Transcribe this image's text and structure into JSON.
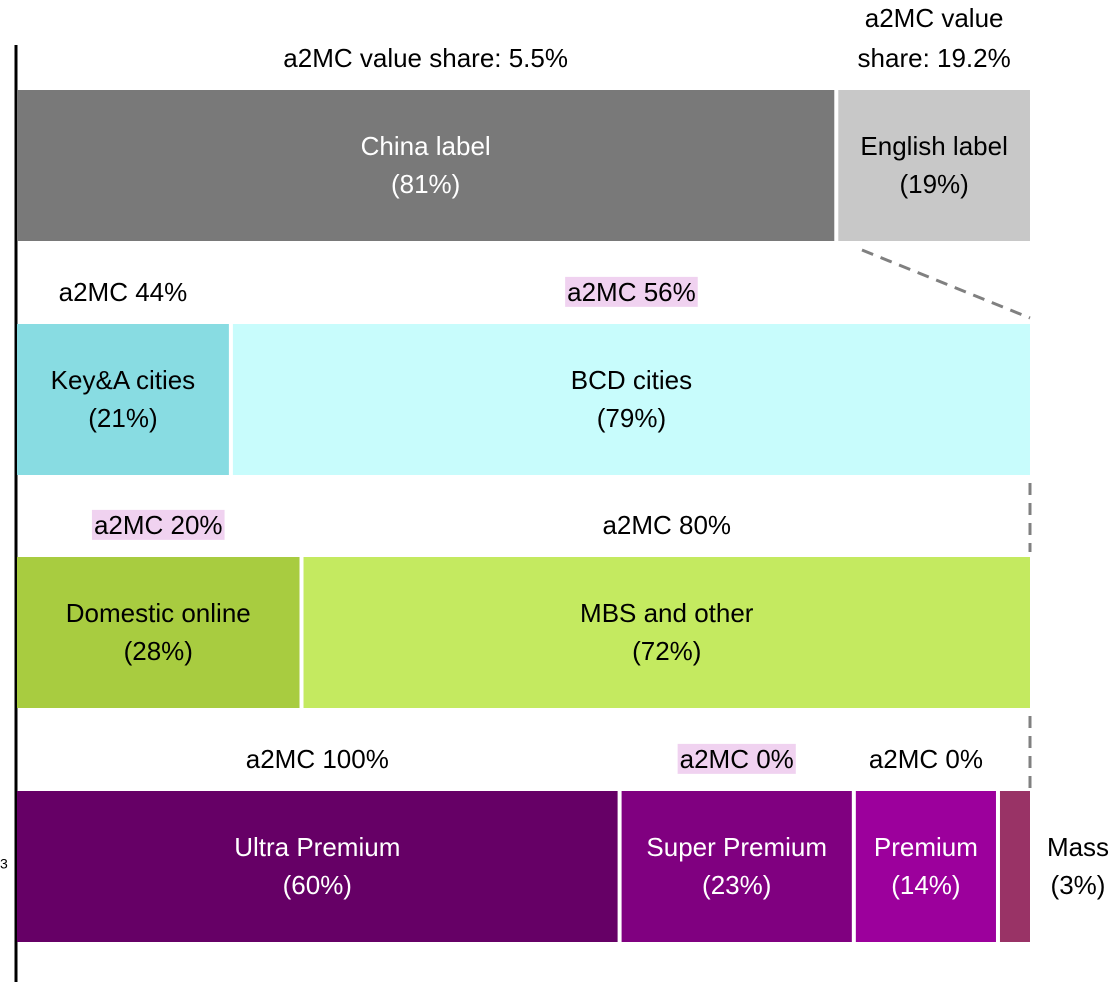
{
  "left_label": "3",
  "rows": [
    {
      "segments": [
        {
          "label": "China label",
          "value": 81,
          "value_label": "(81%)",
          "color": "#797979",
          "text_color": "#ffffff",
          "note": [
            "a2MC value share: 5.5%"
          ],
          "note_highlight": false
        },
        {
          "label": "English label",
          "value": 19,
          "value_label": "(19%)",
          "color": "#c8c8c8",
          "text_color": "#000000",
          "note": [
            "a2MC value",
            "share: 19.2%"
          ],
          "note_highlight": false
        }
      ]
    },
    {
      "segments": [
        {
          "label": "Key&A cities",
          "value": 21,
          "value_label": "(21%)",
          "color": "#88dce2",
          "text_color": "#000000",
          "note": [
            "a2MC 44%"
          ],
          "note_highlight": false
        },
        {
          "label": "BCD cities",
          "value": 79,
          "value_label": "(79%)",
          "color": "#c8fcfc",
          "text_color": "#000000",
          "note": [
            "a2MC 56%"
          ],
          "note_highlight": true
        }
      ]
    },
    {
      "segments": [
        {
          "label": "Domestic online",
          "value": 28,
          "value_label": "(28%)",
          "color": "#a8cc40",
          "text_color": "#000000",
          "note": [
            "a2MC 20%"
          ],
          "note_highlight": true
        },
        {
          "label": "MBS and other",
          "value": 72,
          "value_label": "(72%)",
          "color": "#c4ea60",
          "text_color": "#000000",
          "note": [
            "a2MC 80%"
          ],
          "note_highlight": false
        }
      ]
    },
    {
      "segments": [
        {
          "label": "Ultra Premium",
          "value": 60,
          "value_label": "(60%)",
          "color": "#660066",
          "text_color": "#ffffff",
          "note": [
            "a2MC 100%"
          ],
          "note_highlight": false
        },
        {
          "label": "Super Premium",
          "value": 23,
          "value_label": "(23%)",
          "color": "#800080",
          "text_color": "#ffffff",
          "note": [
            "a2MC 0%"
          ],
          "note_highlight": true
        },
        {
          "label": "Premium",
          "value": 14,
          "value_label": "(14%)",
          "color": "#9c009c",
          "text_color": "#ffffff",
          "note": [
            "a2MC 0%"
          ],
          "note_highlight": false
        },
        {
          "label": "Mass",
          "value": 3,
          "value_label": "(3%)",
          "color": "#993366",
          "text_color": "#000000",
          "note": [],
          "note_highlight": false
        }
      ]
    }
  ]
}
